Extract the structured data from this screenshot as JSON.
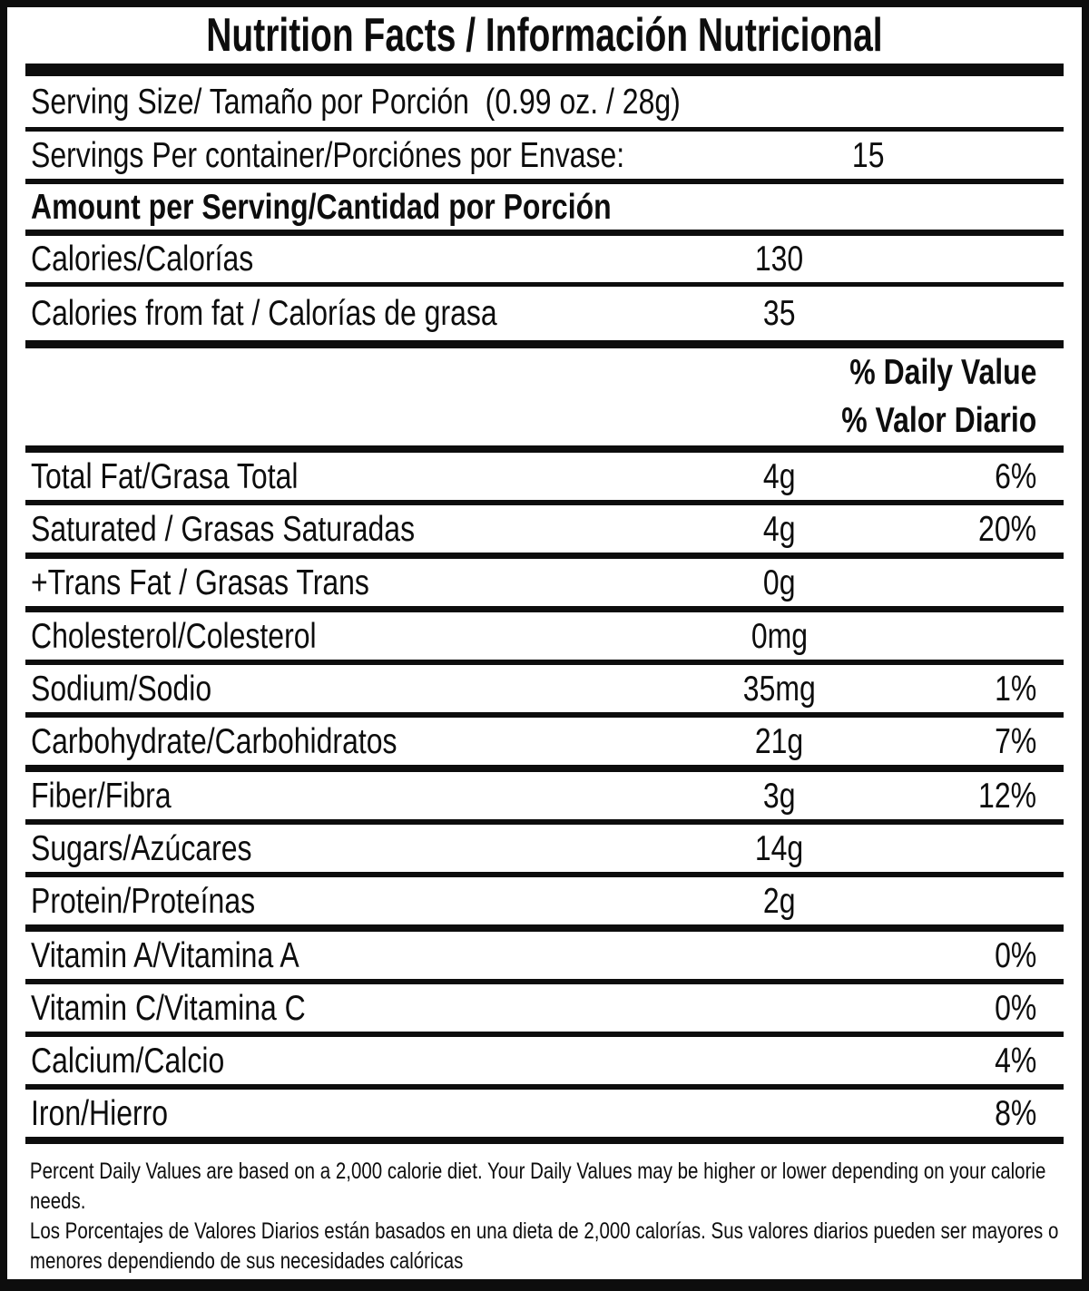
{
  "label": {
    "title": "Nutrition Facts / Información Nutricional",
    "serving_size": "Serving Size/ Tamaño por Porción  (0.99 oz. / 28g)",
    "servings_per_container": {
      "label": "Servings Per container/Porciónes por Envase:",
      "value": "15"
    },
    "amount_per_serving": "Amount per Serving/Cantidad por Porción",
    "calories": {
      "label": "Calories/Calorías",
      "value": "130"
    },
    "calories_from_fat": {
      "label": "Calories from fat / Calorías de grasa",
      "value": "35"
    },
    "daily_value_header": {
      "en": "% Daily Value",
      "es": "% Valor Diario"
    },
    "nutrients": [
      {
        "label": "Total Fat/Grasa Total",
        "amount": "4g",
        "dv": "6%"
      },
      {
        "label": "Saturated / Grasas Saturadas",
        "amount": "4g",
        "dv": "20%"
      },
      {
        "label": "+Trans Fat / Grasas Trans",
        "amount": "0g",
        "dv": ""
      },
      {
        "label": "Cholesterol/Colesterol",
        "amount": "0mg",
        "dv": ""
      },
      {
        "label": "Sodium/Sodio",
        "amount": "35mg",
        "dv": "1%"
      },
      {
        "label": "Carbohydrate/Carbohidratos",
        "amount": "21g",
        "dv": "7%"
      },
      {
        "label": "Fiber/Fibra",
        "amount": "3g",
        "dv": "12%"
      },
      {
        "label": "Sugars/Azúcares",
        "amount": "14g",
        "dv": ""
      },
      {
        "label": "Protein/Proteínas",
        "amount": "2g",
        "dv": ""
      },
      {
        "label": "Vitamin A/Vitamina A",
        "amount": "",
        "dv": "0%"
      },
      {
        "label": "Vitamin C/Vitamina C",
        "amount": "",
        "dv": "0%"
      },
      {
        "label": "Calcium/Calcio",
        "amount": "",
        "dv": "4%"
      },
      {
        "label": "Iron/Hierro",
        "amount": "",
        "dv": "8%"
      }
    ],
    "footnote_en": "Percent Daily Values are based on a 2,000 calorie diet. Your Daily Values may be higher or lower depending on your calorie needs.",
    "footnote_es": "Los Porcentajes de Valores Diarios están basados en una dieta de 2,000 calorías. Sus valores diarios pueden ser mayores o menores dependiendo de sus necesidades calóricas"
  },
  "colors": {
    "ink": "#0d0d0d",
    "background": "#ffffff"
  }
}
